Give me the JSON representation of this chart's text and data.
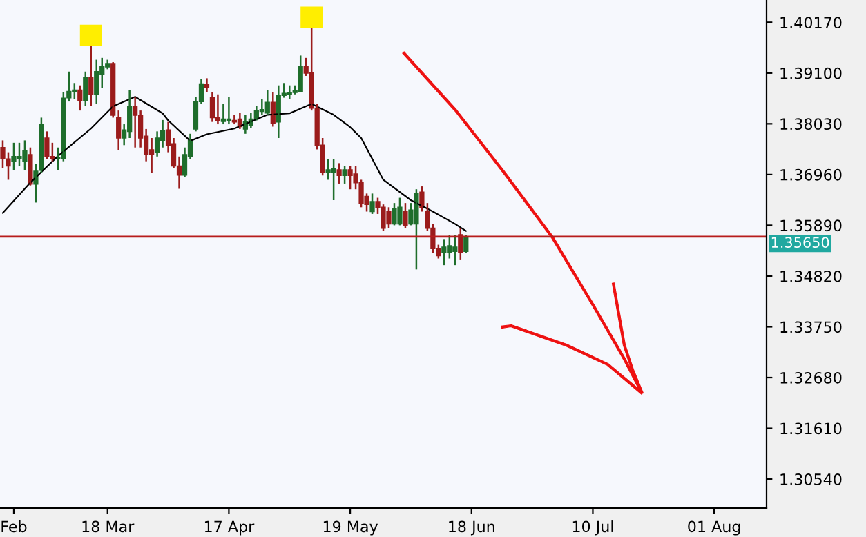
{
  "chart_data": {
    "type": "candlestick",
    "categories": [
      null,
      null,
      "Feb",
      null,
      null,
      null,
      null,
      null,
      null,
      null,
      null,
      null,
      null,
      null,
      null,
      null,
      null,
      null,
      null,
      "18 Mar",
      null,
      null,
      null,
      null,
      null,
      null,
      null,
      null,
      null,
      null,
      null,
      null,
      null,
      null,
      null,
      null,
      null,
      null,
      null,
      null,
      null,
      "17 Apr",
      null,
      null,
      null,
      null,
      null,
      null,
      null,
      null,
      null,
      null,
      null,
      null,
      null,
      null,
      null,
      null,
      null,
      null,
      null,
      null,
      null,
      "19 May",
      null,
      null,
      null,
      null,
      null,
      null,
      null,
      null,
      null,
      null,
      null,
      null,
      null,
      null,
      null,
      null,
      null,
      null,
      null,
      null,
      null,
      "18 Jun",
      null,
      null,
      null,
      null,
      null,
      null,
      null,
      null,
      null,
      null,
      null,
      null,
      null,
      null,
      null,
      null,
      null,
      null,
      null,
      null,
      null,
      "10 Jul",
      null,
      null,
      null,
      null,
      null,
      null,
      null,
      null,
      null,
      null,
      null,
      null,
      null,
      null,
      null,
      null,
      null,
      null,
      null,
      null,
      null,
      "01 Aug",
      null,
      null,
      null,
      null,
      null,
      null,
      null,
      null,
      null
    ],
    "ohlc": [
      [
        1.3753,
        1.3768,
        1.3709,
        1.3729
      ],
      [
        1.3729,
        1.3743,
        1.3685,
        1.3714
      ],
      [
        1.3724,
        1.3763,
        1.3705,
        1.3734
      ],
      [
        1.3729,
        1.3763,
        1.3714,
        1.3734
      ],
      [
        1.3724,
        1.3768,
        1.3705,
        1.3746
      ],
      [
        1.3738,
        1.3753,
        1.3673,
        1.3676
      ],
      [
        1.3676,
        1.3719,
        1.3637,
        1.3703
      ],
      [
        1.3705,
        1.3816,
        1.37,
        1.3802
      ],
      [
        1.3773,
        1.3787,
        1.3729,
        1.3734
      ],
      [
        1.3734,
        1.3763,
        1.3724,
        1.3729
      ],
      [
        1.3729,
        1.3753,
        1.3705,
        1.3732
      ],
      [
        1.3729,
        1.3869,
        1.3724,
        1.3857
      ],
      [
        1.3858,
        1.3913,
        1.385,
        1.3871
      ],
      [
        1.3871,
        1.3889,
        1.3855,
        1.3874
      ],
      [
        1.3874,
        1.3884,
        1.3831,
        1.3852
      ],
      [
        1.3852,
        1.3913,
        1.384,
        1.3901
      ],
      [
        1.3901,
        1.3967,
        1.384,
        1.3865
      ],
      [
        1.3865,
        1.3938,
        1.3845,
        1.3913
      ],
      [
        1.3908,
        1.3942,
        1.3879,
        1.3923
      ],
      [
        1.3923,
        1.3938,
        1.3918,
        1.393
      ],
      [
        1.393,
        1.3933,
        1.3816,
        1.3821
      ],
      [
        1.3816,
        1.3831,
        1.3748,
        1.3773
      ],
      [
        1.3773,
        1.3802,
        1.3758,
        1.379
      ],
      [
        1.3787,
        1.3874,
        1.3773,
        1.3839
      ],
      [
        1.3839,
        1.386,
        1.3753,
        1.3821
      ],
      [
        1.3821,
        1.3831,
        1.3753,
        1.3773
      ],
      [
        1.3777,
        1.3792,
        1.3724,
        1.3738
      ],
      [
        1.3748,
        1.3773,
        1.37,
        1.3738
      ],
      [
        1.3743,
        1.3787,
        1.3734,
        1.3773
      ],
      [
        1.3768,
        1.3811,
        1.3753,
        1.3789
      ],
      [
        1.379,
        1.3807,
        1.3743,
        1.3758
      ],
      [
        1.3761,
        1.3773,
        1.3709,
        1.3714
      ],
      [
        1.3714,
        1.3734,
        1.3666,
        1.3695
      ],
      [
        1.3695,
        1.3753,
        1.369,
        1.3738
      ],
      [
        1.3734,
        1.3782,
        1.3729,
        1.3768
      ],
      [
        1.3792,
        1.386,
        1.3787,
        1.385
      ],
      [
        1.385,
        1.3897,
        1.3845,
        1.3887
      ],
      [
        1.3886,
        1.3899,
        1.3869,
        1.3879
      ],
      [
        1.3858,
        1.3869,
        1.3807,
        1.3816
      ],
      [
        1.3816,
        1.3865,
        1.3802,
        1.381
      ],
      [
        1.3808,
        1.3845,
        1.3802,
        1.3813
      ],
      [
        1.381,
        1.386,
        1.3802,
        1.3813
      ],
      [
        1.381,
        1.3821,
        1.3802,
        1.3807
      ],
      [
        1.3813,
        1.3826,
        1.3792,
        1.3797
      ],
      [
        1.3792,
        1.3821,
        1.3782,
        1.3807
      ],
      [
        1.38,
        1.3826,
        1.3794,
        1.3813
      ],
      [
        1.3813,
        1.384,
        1.381,
        1.3831
      ],
      [
        1.3829,
        1.3855,
        1.3821,
        1.3833
      ],
      [
        1.3826,
        1.3874,
        1.3821,
        1.3848
      ],
      [
        1.3848,
        1.3869,
        1.3797,
        1.3804
      ],
      [
        1.3807,
        1.3884,
        1.3773,
        1.3863
      ],
      [
        1.3863,
        1.3889,
        1.3858,
        1.3867
      ],
      [
        1.3865,
        1.3884,
        1.3855,
        1.3869
      ],
      [
        1.3869,
        1.3884,
        1.3865,
        1.3872
      ],
      [
        1.3871,
        1.3947,
        1.3869,
        1.3923
      ],
      [
        1.3923,
        1.3942,
        1.3904,
        1.391
      ],
      [
        1.391,
        1.4005,
        1.3831,
        1.3836
      ],
      [
        1.3836,
        1.3845,
        1.3749,
        1.3758
      ],
      [
        1.3758,
        1.3773,
        1.3694,
        1.37
      ],
      [
        1.37,
        1.3729,
        1.3685,
        1.3706
      ],
      [
        1.37,
        1.3729,
        1.3642,
        1.3709
      ],
      [
        1.3706,
        1.372,
        1.3677,
        1.3694
      ],
      [
        1.3694,
        1.3714,
        1.3677,
        1.3706
      ],
      [
        1.3706,
        1.3714,
        1.3665,
        1.3694
      ],
      [
        1.3697,
        1.3714,
        1.3665,
        1.3679
      ],
      [
        1.3679,
        1.3685,
        1.3627,
        1.3636
      ],
      [
        1.365,
        1.3656,
        1.3618,
        1.3633
      ],
      [
        1.3618,
        1.3656,
        1.3613,
        1.3639
      ],
      [
        1.3639,
        1.3647,
        1.3613,
        1.3627
      ],
      [
        1.3627,
        1.3633,
        1.3578,
        1.3583
      ],
      [
        1.3618,
        1.3627,
        1.3583,
        1.3592
      ],
      [
        1.3592,
        1.3636,
        1.3589,
        1.3624
      ],
      [
        1.3592,
        1.3647,
        1.3589,
        1.3627
      ],
      [
        1.3618,
        1.3636,
        1.3583,
        1.3589
      ],
      [
        1.3592,
        1.3636,
        1.3589,
        1.3621
      ],
      [
        1.3592,
        1.3665,
        1.3496,
        1.3656
      ],
      [
        1.3659,
        1.3671,
        1.3618,
        1.3627
      ],
      [
        1.3618,
        1.3636,
        1.3578,
        1.3583
      ],
      [
        1.3583,
        1.3592,
        1.3531,
        1.354
      ],
      [
        1.354,
        1.3548,
        1.3519,
        1.3525
      ],
      [
        1.3531,
        1.356,
        1.3505,
        1.3543
      ],
      [
        1.3531,
        1.3569,
        1.3519,
        1.3546
      ],
      [
        1.3534,
        1.3569,
        1.3505,
        1.3543
      ],
      [
        1.3569,
        1.3583,
        1.3517,
        1.3531
      ],
      [
        1.3534,
        1.3569,
        1.3531,
        1.3565
      ],
      null,
      null,
      null,
      null,
      null,
      null,
      null,
      null,
      null,
      null,
      null,
      null,
      null,
      null,
      null,
      null,
      null,
      null,
      null,
      null,
      null,
      null,
      null,
      null,
      null,
      null,
      null,
      null,
      null,
      null,
      null,
      null,
      null,
      null,
      null,
      null,
      null,
      null,
      null,
      null,
      null,
      null,
      null,
      null,
      null,
      null,
      null,
      null,
      null,
      null,
      null,
      null,
      null,
      null
    ],
    "colors": [
      "#9b1c1c",
      "#9b1c1c",
      "#1f6e2c",
      "#1f6e2c",
      "#1f6e2c",
      "#9b1c1c",
      "#1f6e2c",
      "#1f6e2c",
      "#9b1c1c",
      "#9b1c1c",
      "#1f6e2c",
      "#1f6e2c",
      "#1f6e2c",
      "#1f6e2c",
      "#9b1c1c",
      "#1f6e2c",
      "#9b1c1c",
      "#1f6e2c",
      "#1f6e2c",
      "#1f6e2c",
      "#9b1c1c",
      "#9b1c1c",
      "#1f6e2c",
      "#1f6e2c",
      "#9b1c1c",
      "#9b1c1c",
      "#9b1c1c",
      "#9b1c1c",
      "#1f6e2c",
      "#1f6e2c",
      "#9b1c1c",
      "#9b1c1c",
      "#9b1c1c",
      "#1f6e2c",
      "#1f6e2c",
      "#1f6e2c",
      "#1f6e2c",
      "#9b1c1c",
      "#9b1c1c",
      "#9b1c1c",
      "#1f6e2c",
      "#1f6e2c",
      "#9b1c1c",
      "#9b1c1c",
      "#1f6e2c",
      "#1f6e2c",
      "#1f6e2c",
      "#1f6e2c",
      "#1f6e2c",
      "#9b1c1c",
      "#1f6e2c",
      "#1f6e2c",
      "#1f6e2c",
      "#1f6e2c",
      "#1f6e2c",
      "#9b1c1c",
      "#9b1c1c",
      "#9b1c1c",
      "#9b1c1c",
      "#1f6e2c",
      "#1f6e2c",
      "#9b1c1c",
      "#1f6e2c",
      "#9b1c1c",
      "#9b1c1c",
      "#9b1c1c",
      "#9b1c1c",
      "#1f6e2c",
      "#9b1c1c",
      "#9b1c1c",
      "#9b1c1c",
      "#1f6e2c",
      "#1f6e2c",
      "#9b1c1c",
      "#1f6e2c",
      "#1f6e2c",
      "#9b1c1c",
      "#9b1c1c",
      "#9b1c1c",
      "#9b1c1c",
      "#1f6e2c",
      "#1f6e2c",
      "#1f6e2c",
      "#9b1c1c",
      "#1f6e2c",
      null,
      null,
      null,
      null,
      null,
      null,
      null,
      null,
      null,
      null,
      null,
      null,
      null,
      null,
      null,
      null,
      null,
      null,
      null,
      null,
      null,
      null,
      null,
      null,
      null,
      null,
      null,
      null,
      null,
      null,
      null,
      null,
      null,
      null,
      null,
      null,
      null,
      null,
      null,
      null,
      null,
      null,
      null,
      null,
      null,
      null,
      null,
      null,
      null,
      null,
      null,
      null,
      null,
      null
    ],
    "series": [
      {
        "type": "line",
        "color": "#000000",
        "values": [
          1.3615,
          null,
          null,
          null,
          null,
          1.3679,
          null,
          null,
          null,
          null,
          1.3735,
          null,
          null,
          null,
          null,
          null,
          1.3793,
          null,
          null,
          null,
          1.384,
          null,
          null,
          null,
          1.386,
          null,
          null,
          null,
          null,
          1.3825,
          1.381,
          null,
          null,
          null,
          1.3767,
          null,
          null,
          1.3781,
          null,
          null,
          null,
          null,
          1.3793,
          null,
          null,
          null,
          null,
          null,
          1.3822,
          null,
          null,
          null,
          1.3825,
          null,
          null,
          null,
          1.3845,
          null,
          null,
          null,
          1.3822,
          null,
          null,
          1.3796,
          null,
          1.3773,
          null,
          null,
          null,
          1.3685,
          null,
          null,
          null,
          null,
          1.3642,
          null,
          null,
          null,
          1.3618,
          null,
          null,
          null,
          1.3592,
          null,
          1.3577,
          null,
          null,
          null,
          null,
          null,
          null,
          null,
          null,
          null,
          null,
          null,
          null,
          null,
          null,
          null,
          null,
          null,
          null,
          null,
          null,
          null,
          null,
          null,
          null,
          null,
          null,
          null,
          null,
          null,
          null,
          null,
          null,
          null,
          null,
          null,
          null,
          null,
          null,
          null,
          null,
          null,
          null,
          null,
          null,
          null,
          null,
          null,
          null,
          null,
          null,
          null,
          null,
          null,
          null
        ]
      }
    ],
    "ylim": [
      1.2993,
      1.4064
    ],
    "yticks": [
      {
        "value": 1.3054,
        "label": "1.30540"
      },
      {
        "value": 1.3161,
        "label": "1.31610"
      },
      {
        "value": 1.3268,
        "label": "1.32680"
      },
      {
        "value": 1.3375,
        "label": "1.33750"
      },
      {
        "value": 1.3482,
        "label": "1.34820"
      },
      {
        "value": 1.3589,
        "label": "1.35890"
      },
      {
        "value": 1.3696,
        "label": "1.36960"
      },
      {
        "value": 1.3803,
        "label": "1.38030"
      },
      {
        "value": 1.391,
        "label": "1.39100"
      },
      {
        "value": 1.4017,
        "label": "1.40170"
      }
    ],
    "ref_lines": [
      {
        "axis": "y",
        "value": 1.3565,
        "label": "1.35650",
        "color": "#b71c1c"
      }
    ],
    "grid": false
  }
}
